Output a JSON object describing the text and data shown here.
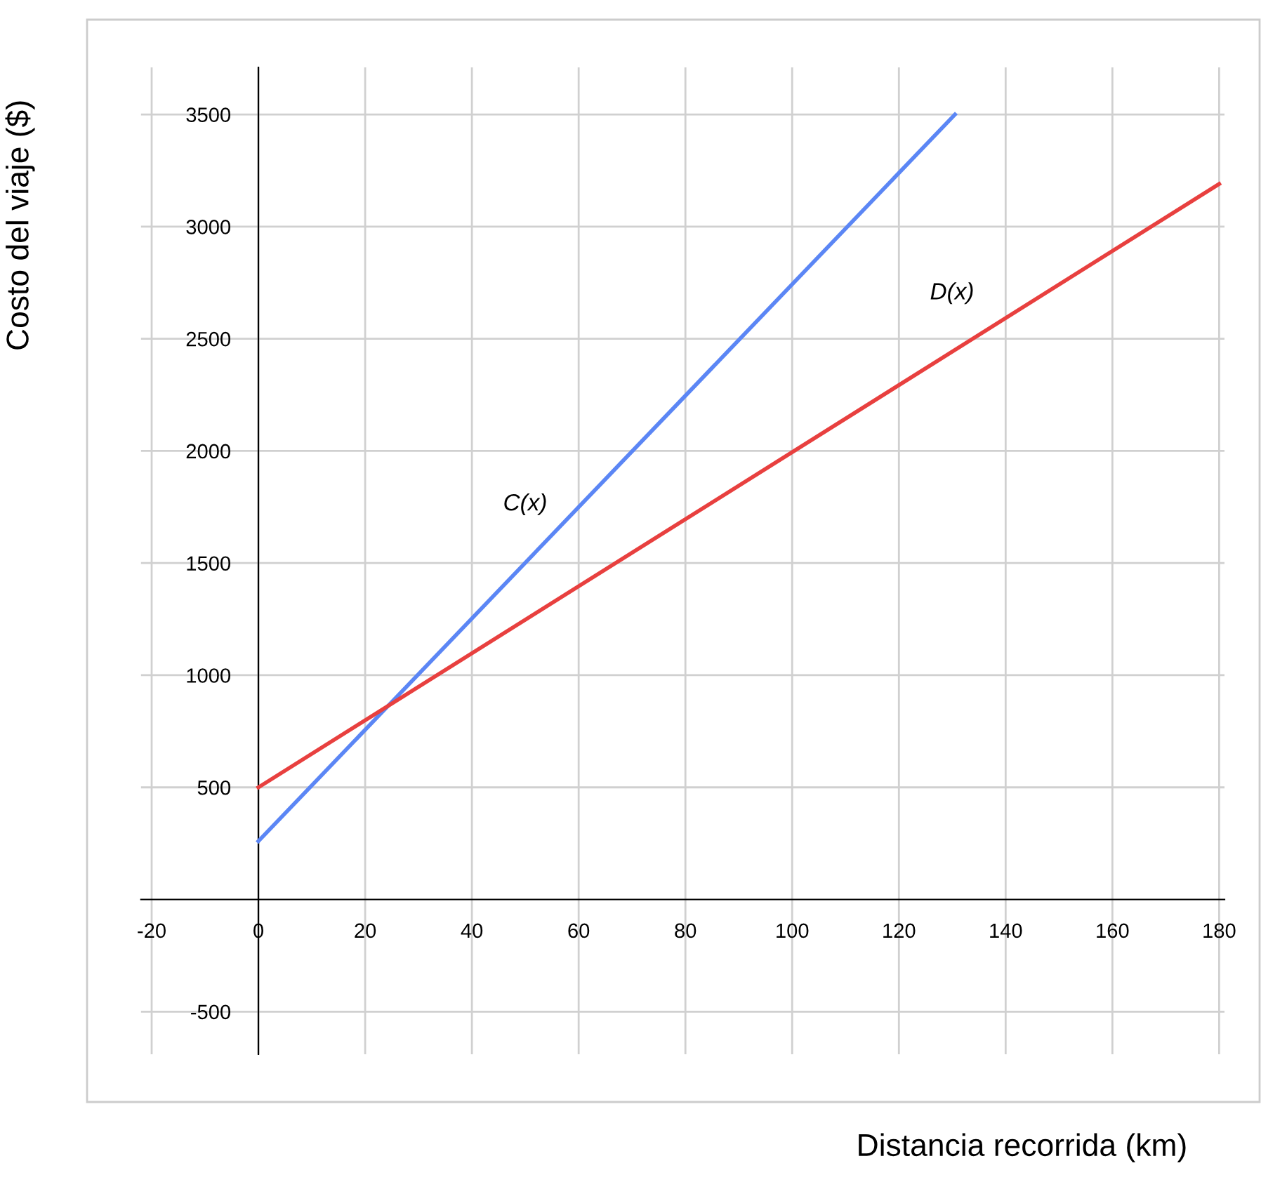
{
  "chart_data": {
    "type": "line",
    "xlabel": "Distancia recorrida (km)",
    "ylabel": "Costo del viaje ($)",
    "series": [
      {
        "name": "C(x)",
        "color": "#5b86f5",
        "x": [
          0,
          130.5
        ],
        "values": [
          260,
          3500
        ]
      },
      {
        "name": "D(x)",
        "color": "#e8403f",
        "x": [
          0,
          180
        ],
        "values": [
          500,
          3190
        ]
      }
    ],
    "xlim": [
      -22,
      181
    ],
    "ylim": [
      -690,
      3710
    ],
    "xticks": [
      -20,
      0,
      20,
      40,
      60,
      80,
      100,
      120,
      140,
      160,
      180
    ],
    "yticks": [
      -500,
      500,
      1000,
      1500,
      2000,
      2500,
      3000,
      3500
    ],
    "grid": true,
    "marker": "none",
    "line_style": "solid"
  }
}
